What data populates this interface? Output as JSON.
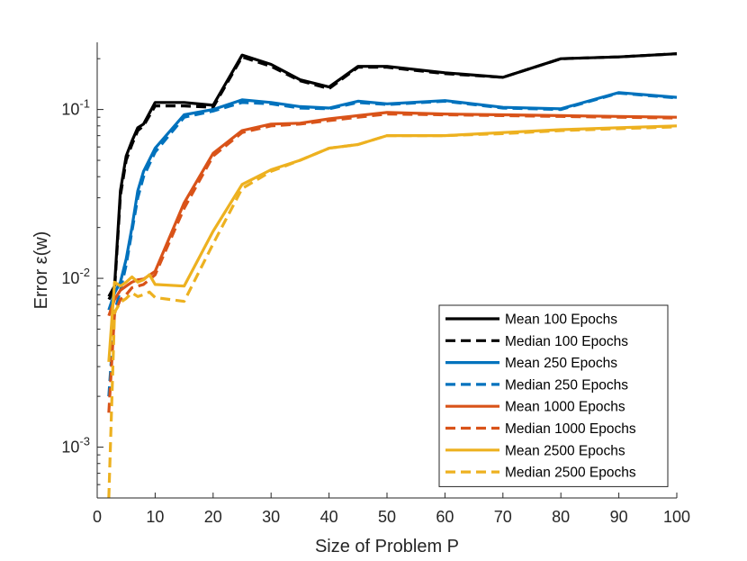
{
  "chart_data": {
    "type": "line",
    "title": "",
    "xlabel": "Size of Problem P",
    "ylabel": "Error ε(w)",
    "xlim": [
      0,
      100
    ],
    "ylim": [
      0.0005,
      0.25
    ],
    "yscale": "log",
    "x_ticks": [
      0,
      10,
      20,
      30,
      40,
      50,
      60,
      70,
      80,
      90,
      100
    ],
    "y_ticks": [
      {
        "value": 0.001,
        "base": "10",
        "exp": "-3"
      },
      {
        "value": 0.01,
        "base": "10",
        "exp": "-2"
      },
      {
        "value": 0.1,
        "base": "10",
        "exp": "-1"
      }
    ],
    "grid": false,
    "legend_position": "bottom-right",
    "series": [
      {
        "name": "Mean 100 Epochs",
        "color": "#000000",
        "style": "solid",
        "x": [
          2,
          3,
          4,
          5,
          6,
          7,
          8,
          10,
          15,
          20,
          25,
          30,
          35,
          40,
          45,
          50,
          60,
          70,
          80,
          90,
          100
        ],
        "y": [
          0.0078,
          0.009,
          0.033,
          0.053,
          0.065,
          0.078,
          0.082,
          0.11,
          0.11,
          0.106,
          0.21,
          0.185,
          0.15,
          0.136,
          0.18,
          0.18,
          0.165,
          0.155,
          0.2,
          0.205,
          0.214
        ]
      },
      {
        "name": "Median 100 Epochs",
        "color": "#000000",
        "style": "dashed",
        "x": [
          2,
          3,
          4,
          5,
          6,
          7,
          8,
          10,
          15,
          20,
          25,
          30,
          35,
          40,
          45,
          50,
          60,
          70,
          80,
          90,
          100
        ],
        "y": [
          0.0075,
          0.0085,
          0.031,
          0.05,
          0.062,
          0.075,
          0.08,
          0.105,
          0.105,
          0.103,
          0.205,
          0.18,
          0.148,
          0.133,
          0.178,
          0.178,
          0.163,
          0.155,
          0.2,
          0.205,
          0.214
        ]
      },
      {
        "name": "Mean 250 Epochs",
        "color": "#0072BD",
        "style": "solid",
        "x": [
          2,
          3,
          4,
          5,
          6,
          7,
          8,
          10,
          15,
          20,
          25,
          30,
          35,
          40,
          45,
          50,
          60,
          70,
          80,
          90,
          100
        ],
        "y": [
          0.0065,
          0.0082,
          0.0095,
          0.013,
          0.02,
          0.033,
          0.043,
          0.059,
          0.093,
          0.1,
          0.114,
          0.11,
          0.104,
          0.102,
          0.112,
          0.108,
          0.113,
          0.103,
          0.101,
          0.126,
          0.118
        ]
      },
      {
        "name": "Median 250 Epochs",
        "color": "#0072BD",
        "style": "dashed",
        "x": [
          2,
          3,
          4,
          5,
          6,
          7,
          8,
          10,
          15,
          20,
          25,
          30,
          35,
          40,
          45,
          50,
          60,
          70,
          80,
          90,
          100
        ],
        "y": [
          0.002,
          0.0063,
          0.0085,
          0.012,
          0.019,
          0.03,
          0.04,
          0.056,
          0.09,
          0.098,
          0.11,
          0.108,
          0.102,
          0.101,
          0.11,
          0.107,
          0.112,
          0.102,
          0.1,
          0.125,
          0.117
        ]
      },
      {
        "name": "Mean 1000 Epochs",
        "color": "#D95319",
        "style": "solid",
        "x": [
          2,
          3,
          4,
          5,
          6,
          7,
          8,
          10,
          15,
          20,
          25,
          30,
          35,
          40,
          45,
          50,
          60,
          70,
          80,
          90,
          100
        ],
        "y": [
          0.006,
          0.0075,
          0.0085,
          0.009,
          0.0095,
          0.0098,
          0.0099,
          0.011,
          0.028,
          0.055,
          0.075,
          0.082,
          0.083,
          0.088,
          0.092,
          0.096,
          0.094,
          0.093,
          0.092,
          0.091,
          0.09
        ]
      },
      {
        "name": "Median 1000 Epochs",
        "color": "#D95319",
        "style": "dashed",
        "x": [
          2,
          3,
          4,
          5,
          6,
          7,
          8,
          10,
          15,
          20,
          25,
          30,
          35,
          40,
          45,
          50,
          60,
          70,
          80,
          90,
          100
        ],
        "y": [
          0.0016,
          0.0062,
          0.0075,
          0.008,
          0.0088,
          0.009,
          0.0092,
          0.0105,
          0.026,
          0.053,
          0.073,
          0.08,
          0.082,
          0.086,
          0.09,
          0.094,
          0.093,
          0.092,
          0.091,
          0.09,
          0.089
        ]
      },
      {
        "name": "Mean 2500 Epochs",
        "color": "#EDB120",
        "style": "solid",
        "x": [
          2,
          3,
          4,
          5,
          6,
          7,
          8,
          9,
          10,
          15,
          20,
          25,
          30,
          35,
          40,
          45,
          50,
          60,
          70,
          80,
          90,
          100
        ],
        "y": [
          0.0032,
          0.0095,
          0.009,
          0.0095,
          0.0102,
          0.0095,
          0.0098,
          0.0105,
          0.0092,
          0.009,
          0.019,
          0.036,
          0.044,
          0.05,
          0.059,
          0.062,
          0.07,
          0.07,
          0.073,
          0.076,
          0.078,
          0.08
        ]
      },
      {
        "name": "Median 2500 Epochs",
        "color": "#EDB120",
        "style": "dashed",
        "x": [
          2,
          3,
          4,
          5,
          6,
          7,
          8,
          9,
          10,
          15,
          20,
          25,
          30,
          35,
          40,
          45,
          50,
          60,
          70,
          80,
          90,
          100
        ],
        "y": [
          0.0005,
          0.0063,
          0.0072,
          0.0076,
          0.0082,
          0.0078,
          0.008,
          0.0083,
          0.0077,
          0.0073,
          0.016,
          0.034,
          0.043,
          0.05,
          0.059,
          0.062,
          0.07,
          0.07,
          0.072,
          0.075,
          0.077,
          0.079
        ]
      }
    ]
  }
}
